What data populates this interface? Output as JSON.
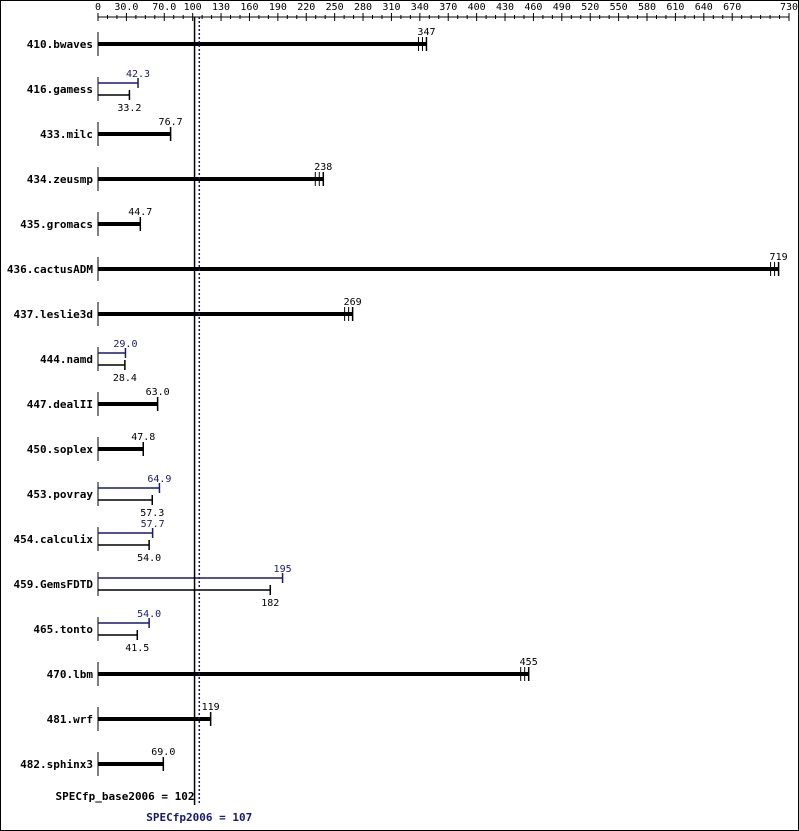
{
  "chart_data": {
    "type": "bar",
    "orientation": "horizontal",
    "title": "",
    "xlabel": "",
    "ylabel": "",
    "xlim": [
      0,
      730
    ],
    "x_ticks": [
      0,
      30.0,
      70.0,
      100,
      130,
      160,
      190,
      220,
      250,
      280,
      310,
      340,
      370,
      400,
      430,
      460,
      490,
      520,
      550,
      580,
      610,
      640,
      670,
      730
    ],
    "x_tick_labels": [
      "0",
      "30.0",
      "70.0",
      "100",
      "130",
      "160",
      "190",
      "220",
      "250",
      "280",
      "310",
      "340",
      "370",
      "400",
      "430",
      "460",
      "490",
      "520",
      "550",
      "580",
      "610",
      "640",
      "670",
      "730"
    ],
    "colors": {
      "base": "#000000",
      "peak": "#191970"
    },
    "categories": [
      "410.bwaves",
      "416.gamess",
      "433.milc",
      "434.zeusmp",
      "435.gromacs",
      "436.cactusADM",
      "437.leslie3d",
      "444.namd",
      "447.dealII",
      "450.soplex",
      "453.povray",
      "454.calculix",
      "459.GemsFDTD",
      "465.tonto",
      "470.lbm",
      "481.wrf",
      "482.sphinx3"
    ],
    "series": [
      {
        "key": "base",
        "values": [
          347,
          33.2,
          76.7,
          238,
          44.7,
          719,
          269,
          28.4,
          63.0,
          47.8,
          57.3,
          54.0,
          182,
          41.5,
          455,
          119,
          69.0
        ],
        "labels": [
          "347",
          "33.2",
          "76.7",
          "238",
          "44.7",
          "719",
          "269",
          "28.4",
          "63.0",
          "47.8",
          "57.3",
          "54.0",
          "182",
          "41.5",
          "455",
          "119",
          "69.0"
        ]
      },
      {
        "key": "peak",
        "values": [
          null,
          42.3,
          null,
          null,
          null,
          null,
          null,
          29.0,
          null,
          null,
          64.9,
          57.7,
          195,
          54.0,
          null,
          null,
          null
        ],
        "labels": [
          "",
          "42.3",
          "",
          "",
          "",
          "",
          "",
          "29.0",
          "",
          "",
          "64.9",
          "57.7",
          "195",
          "54.0",
          "",
          "",
          ""
        ]
      }
    ],
    "summary": {
      "base": {
        "label": "SPECfp_base2006 = 102",
        "value": 102
      },
      "peak": {
        "label": "SPECfp2006 = 107",
        "value": 107
      }
    }
  }
}
